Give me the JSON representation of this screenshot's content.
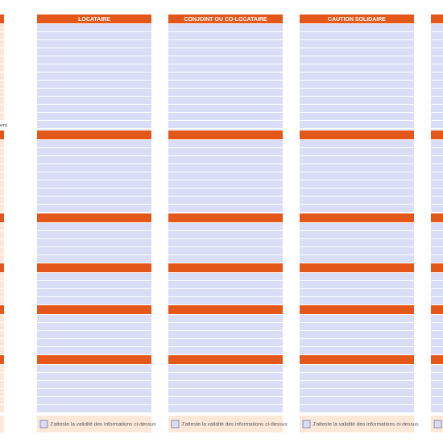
{
  "side_label": "ent",
  "columns": [
    {
      "title": "LOCATAIRE",
      "attest": "J'atteste la validité des informations ci-dessus"
    },
    {
      "title": "CONJOINT OU CO-LOCATAIRE",
      "attest": "J'atteste la validité des informations ci-dessus"
    },
    {
      "title": "CAUTION SOLIDAIRE",
      "attest": "J'atteste la validité des informations ci-dessus"
    }
  ]
}
